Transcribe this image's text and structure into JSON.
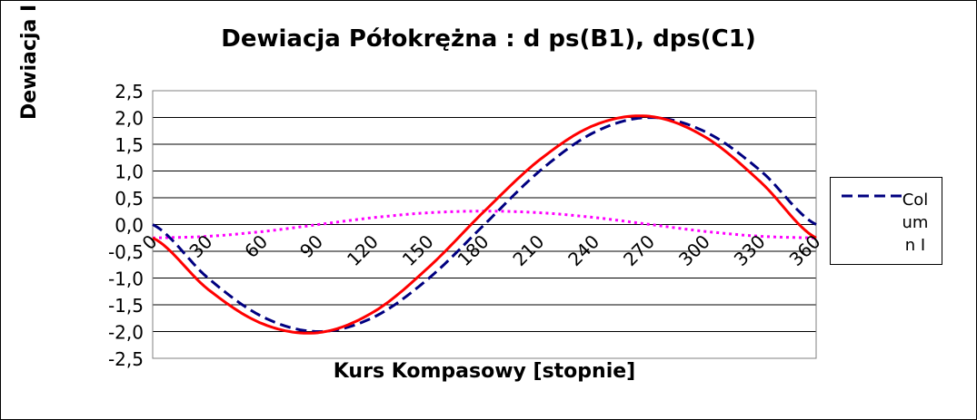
{
  "chart_data": {
    "type": "line",
    "title": "Dewiacja Półokrężna : d ps(B1), dps(C1)",
    "ylabel": "Dewiacja I",
    "xlabel": "Kurs Kompasowy  [stopnie]",
    "xlim": [
      0,
      360
    ],
    "ylim": [
      -2.5,
      2.5
    ],
    "x_ticks": [
      "0",
      "30",
      "60",
      "90",
      "120",
      "150",
      "180",
      "210",
      "240",
      "270",
      "300",
      "330",
      "360"
    ],
    "y_ticks": [
      "2,5",
      "2,0",
      "1,5",
      "1,0",
      "0,5",
      "0,0",
      "-0,5",
      "-1,0",
      "-1,5",
      "-2,0",
      "-2,5"
    ],
    "grid": true,
    "legend_position": "right",
    "x": [
      0,
      30,
      60,
      90,
      120,
      150,
      180,
      210,
      240,
      270,
      300,
      330,
      360
    ],
    "series": [
      {
        "name": "Column I",
        "color": "#000080",
        "style": "dashed",
        "values": [
          0.0,
          -1.0,
          -1.73,
          -2.0,
          -1.73,
          -1.0,
          0.0,
          1.0,
          1.73,
          2.0,
          1.73,
          1.0,
          0.0
        ]
      },
      {
        "color": "#ff0000",
        "style": "solid",
        "values": [
          -0.25,
          -1.21,
          -1.86,
          -2.02,
          -1.63,
          -0.79,
          0.25,
          1.21,
          1.86,
          2.02,
          1.63,
          0.79,
          -0.25
        ]
      },
      {
        "color": "#ff00ff",
        "style": "dotted",
        "values": [
          -0.25,
          -0.22,
          -0.13,
          0.0,
          0.13,
          0.22,
          0.25,
          0.22,
          0.13,
          0.0,
          -0.13,
          -0.22,
          -0.25
        ]
      }
    ]
  }
}
